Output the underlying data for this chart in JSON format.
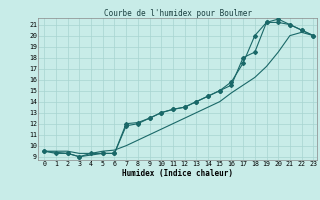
{
  "title": "Courbe de l'humidex pour Boulmer",
  "xlabel": "Humidex (Indice chaleur)",
  "xlim_min": -0.5,
  "xlim_max": 23.3,
  "ylim_min": 8.7,
  "ylim_max": 21.6,
  "xticks": [
    0,
    1,
    2,
    3,
    4,
    5,
    6,
    7,
    8,
    9,
    10,
    11,
    12,
    13,
    14,
    15,
    16,
    17,
    18,
    19,
    20,
    21,
    22,
    23
  ],
  "yticks": [
    9,
    10,
    11,
    12,
    13,
    14,
    15,
    16,
    17,
    18,
    19,
    20,
    21
  ],
  "bg_color": "#c8ece8",
  "grid_color": "#a8d4d0",
  "line_color": "#1a6868",
  "line1_x": [
    0,
    1,
    2,
    3,
    4,
    5,
    6,
    7,
    8,
    9,
    10,
    11,
    12,
    13,
    14,
    15,
    16,
    17,
    18,
    19,
    20,
    21,
    22,
    23
  ],
  "line1_y": [
    9.5,
    9.5,
    9.5,
    9.3,
    9.3,
    9.5,
    9.6,
    10.0,
    10.5,
    11.0,
    11.5,
    12.0,
    12.5,
    13.0,
    13.5,
    14.0,
    14.8,
    15.5,
    16.2,
    17.2,
    18.5,
    20.0,
    20.3,
    20.0
  ],
  "line2_x": [
    0,
    1,
    2,
    3,
    4,
    5,
    6,
    7,
    8,
    9,
    10,
    11,
    12,
    13,
    14,
    15,
    16,
    17,
    18,
    19,
    20,
    21,
    22,
    23
  ],
  "line2_y": [
    9.5,
    9.3,
    9.3,
    9.0,
    9.3,
    9.3,
    9.3,
    12.0,
    12.1,
    12.5,
    13.0,
    13.3,
    13.5,
    14.0,
    14.5,
    15.0,
    15.8,
    17.5,
    20.0,
    21.2,
    21.2,
    21.0,
    20.5,
    20.0
  ],
  "line3_x": [
    0,
    2,
    3,
    5,
    6,
    7,
    8,
    9,
    10,
    11,
    12,
    13,
    14,
    15,
    16,
    17,
    18,
    19,
    20,
    21,
    22,
    23
  ],
  "line3_y": [
    9.5,
    9.3,
    9.0,
    9.3,
    9.3,
    11.8,
    12.0,
    12.5,
    13.0,
    13.3,
    13.5,
    14.0,
    14.5,
    15.0,
    15.5,
    18.0,
    18.5,
    21.2,
    21.5,
    21.0,
    20.5,
    20.0
  ],
  "title_fontsize": 5.5,
  "xlabel_fontsize": 5.5,
  "tick_fontsize": 4.8
}
